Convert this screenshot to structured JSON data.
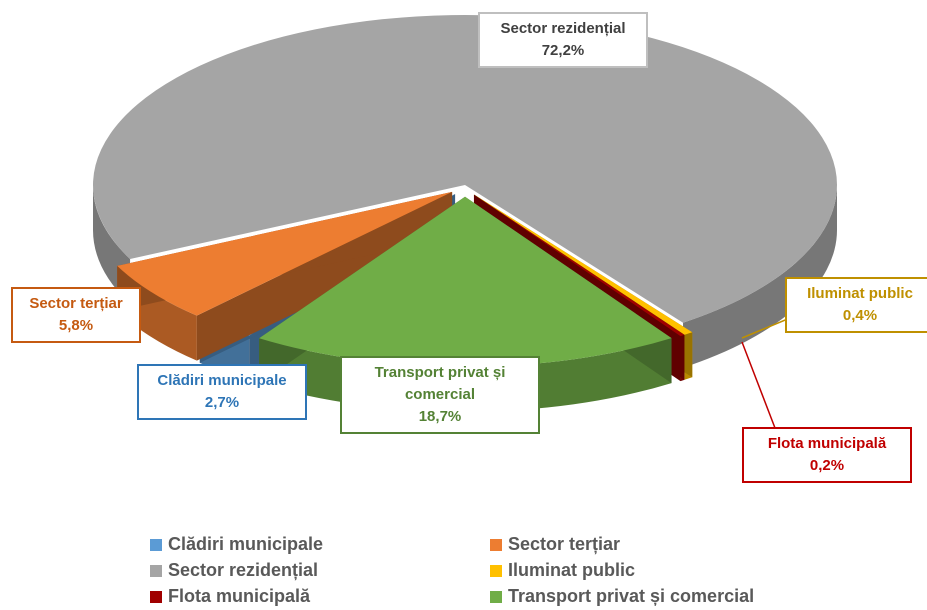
{
  "chart_data": {
    "type": "pie",
    "categories": [
      "Clădiri municipale",
      "Sector terțiar",
      "Sector rezidențial",
      "Iluminat public",
      "Flota municipală",
      "Transport privat și comercial"
    ],
    "values": [
      2.7,
      5.8,
      72.2,
      0.4,
      0.2,
      18.7
    ],
    "value_labels": [
      "2,7%",
      "5,8%",
      "72,2%",
      "0,4%",
      "0,2%",
      "18,7%"
    ],
    "colors": [
      "#5b9bd5",
      "#ed7d31",
      "#a5a5a5",
      "#ffc000",
      "#a00000",
      "#70ad47"
    ],
    "legend": "bottom"
  }
}
